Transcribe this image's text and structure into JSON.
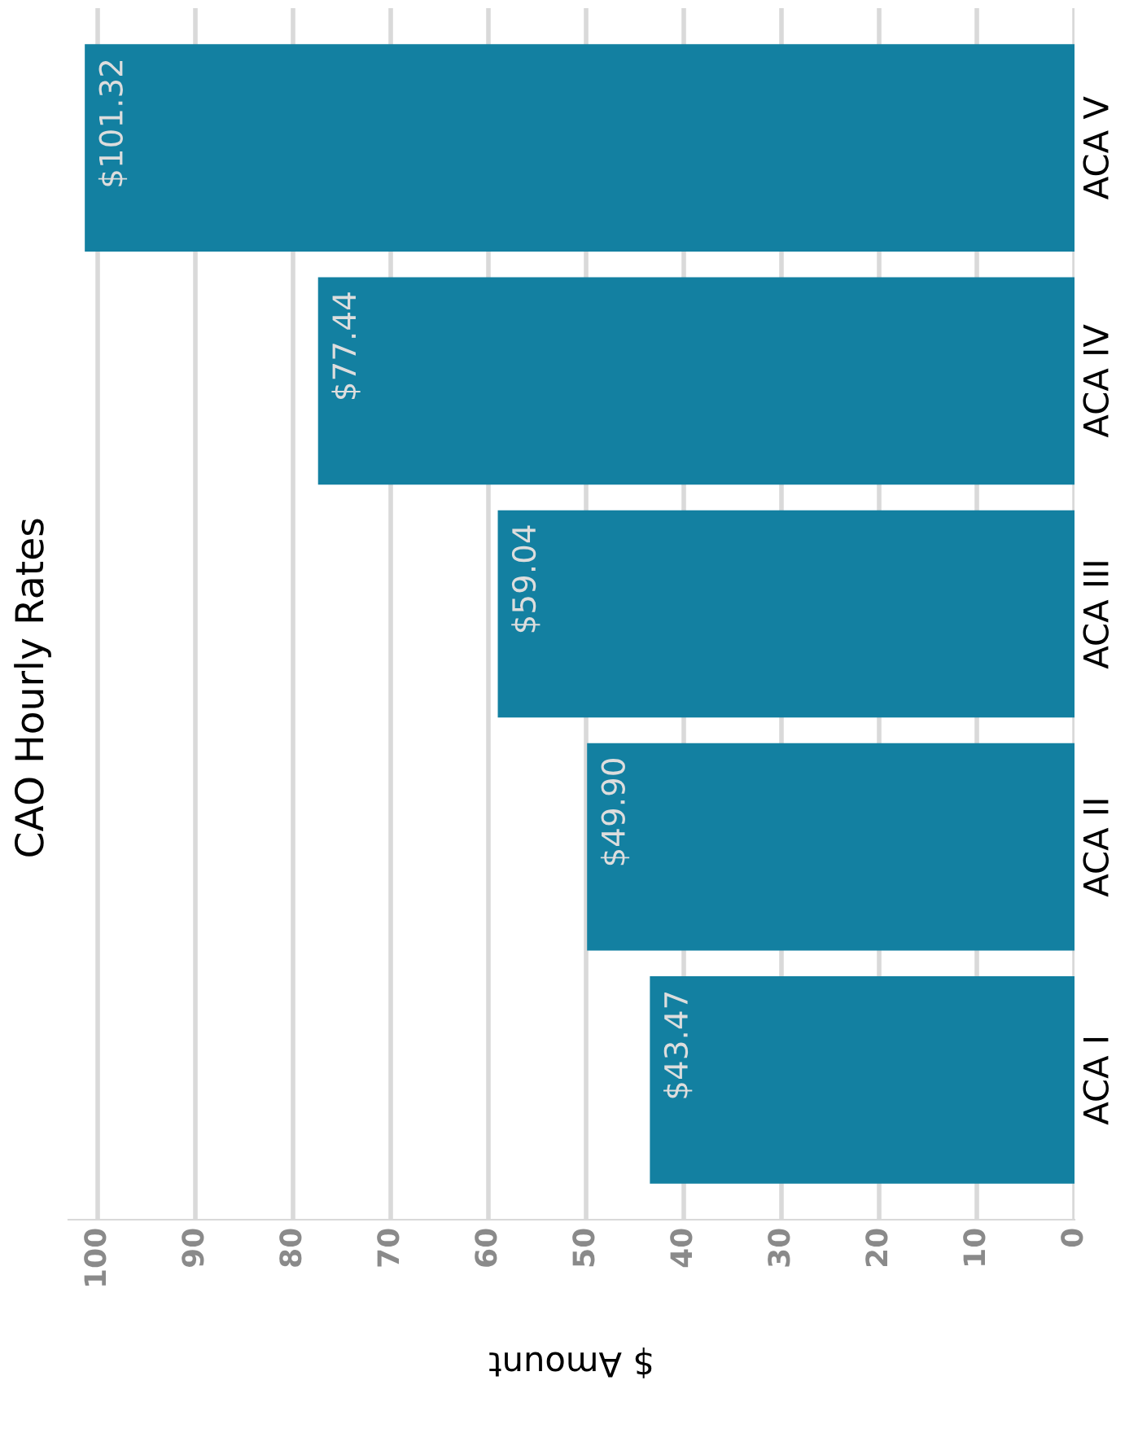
{
  "chart_data": {
    "type": "bar",
    "orientation": "horizontal",
    "title": "CAO Hourly Rates",
    "xlabel": "$ Amount",
    "categories": [
      "ACA V",
      "ACA IV",
      "ACA III",
      "ACA II",
      "ACA I"
    ],
    "values": [
      101.32,
      77.44,
      59.04,
      49.9,
      43.47
    ],
    "value_labels": [
      "$101.32",
      "$77.44",
      "$59.04",
      "$49.90",
      "$43.47"
    ],
    "color": "#1380a1",
    "xlim": [
      103,
      0
    ],
    "xticks": [
      0,
      10,
      20,
      30,
      40,
      50,
      60,
      70,
      80,
      90,
      100
    ],
    "grid": "x"
  }
}
